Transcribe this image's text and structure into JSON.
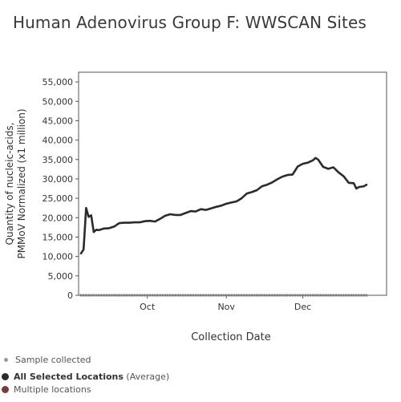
{
  "header": {
    "title": "Human Adenovirus Group F: WWSCAN Sites"
  },
  "chart_data": {
    "type": "line",
    "title": "Human Adenovirus Group F: WWSCAN Sites",
    "xlabel": "Collection Date",
    "ylabel_line1": "Quantity of nucleic-acids,",
    "ylabel_line2": "PMMoV Normalized (x1 million)",
    "ylim": [
      0,
      57500
    ],
    "yticks": [
      0,
      5000,
      10000,
      15000,
      20000,
      25000,
      30000,
      35000,
      40000,
      45000,
      50000,
      55000
    ],
    "ytick_labels": [
      "0",
      "5,000",
      "10,000",
      "15,000",
      "20,000",
      "25,000",
      "30,000",
      "35,000",
      "40,000",
      "45,000",
      "50,000",
      "55,000"
    ],
    "xlim": [
      "2023-09-05",
      "2023-12-26"
    ],
    "xticks": [
      {
        "date": "2023-10-01",
        "label": "Oct"
      },
      {
        "date": "2023-11-01",
        "label": "Nov"
      },
      {
        "date": "2023-12-01",
        "label": "Dec"
      }
    ],
    "grid": false,
    "series": [
      {
        "name": "All Selected Locations",
        "color": "#2b2b2b",
        "points": [
          [
            "2023-09-05",
            10800
          ],
          [
            "2023-09-06",
            11800
          ],
          [
            "2023-09-07",
            22500
          ],
          [
            "2023-09-08",
            20200
          ],
          [
            "2023-09-09",
            20600
          ],
          [
            "2023-09-10",
            16300
          ],
          [
            "2023-09-11",
            16900
          ],
          [
            "2023-09-12",
            16800
          ],
          [
            "2023-09-14",
            17200
          ],
          [
            "2023-09-16",
            17300
          ],
          [
            "2023-09-18",
            17700
          ],
          [
            "2023-09-20",
            18600
          ],
          [
            "2023-09-22",
            18700
          ],
          [
            "2023-09-24",
            18700
          ],
          [
            "2023-09-26",
            18800
          ],
          [
            "2023-09-28",
            18800
          ],
          [
            "2023-09-30",
            19100
          ],
          [
            "2023-10-02",
            19200
          ],
          [
            "2023-10-04",
            19000
          ],
          [
            "2023-10-06",
            19700
          ],
          [
            "2023-10-08",
            20500
          ],
          [
            "2023-10-10",
            20900
          ],
          [
            "2023-10-12",
            20700
          ],
          [
            "2023-10-14",
            20700
          ],
          [
            "2023-10-16",
            21200
          ],
          [
            "2023-10-18",
            21700
          ],
          [
            "2023-10-20",
            21600
          ],
          [
            "2023-10-22",
            22200
          ],
          [
            "2023-10-24",
            22000
          ],
          [
            "2023-10-26",
            22400
          ],
          [
            "2023-10-28",
            22800
          ],
          [
            "2023-10-30",
            23100
          ],
          [
            "2023-11-01",
            23600
          ],
          [
            "2023-11-03",
            23900
          ],
          [
            "2023-11-05",
            24200
          ],
          [
            "2023-11-07",
            25000
          ],
          [
            "2023-11-09",
            26200
          ],
          [
            "2023-11-11",
            26600
          ],
          [
            "2023-11-13",
            27100
          ],
          [
            "2023-11-15",
            28100
          ],
          [
            "2023-11-17",
            28500
          ],
          [
            "2023-11-19",
            29100
          ],
          [
            "2023-11-21",
            29900
          ],
          [
            "2023-11-23",
            30600
          ],
          [
            "2023-11-25",
            31000
          ],
          [
            "2023-11-27",
            31100
          ],
          [
            "2023-11-29",
            33200
          ],
          [
            "2023-12-01",
            33900
          ],
          [
            "2023-12-03",
            34200
          ],
          [
            "2023-12-05",
            34800
          ],
          [
            "2023-12-06",
            35400
          ],
          [
            "2023-12-07",
            35000
          ],
          [
            "2023-12-09",
            33100
          ],
          [
            "2023-12-11",
            32600
          ],
          [
            "2023-12-13",
            33000
          ],
          [
            "2023-12-15",
            31700
          ],
          [
            "2023-12-17",
            30700
          ],
          [
            "2023-12-19",
            29000
          ],
          [
            "2023-12-21",
            28900
          ],
          [
            "2023-12-22",
            27500
          ],
          [
            "2023-12-23",
            27900
          ],
          [
            "2023-12-25",
            28100
          ],
          [
            "2023-12-26",
            28500
          ]
        ]
      }
    ],
    "sample_markers": {
      "start": "2023-09-05",
      "end": "2023-12-26",
      "color": "#7f7f7f"
    }
  },
  "legend": {
    "sample_label": "Sample collected",
    "sample_color": "#9a9a9a",
    "all_locations_bold": "All Selected Locations",
    "all_locations_suffix": " (Average)",
    "all_locations_color": "#2b2b2b",
    "multiple_label": "Multiple locations",
    "multiple_color": "#7a3b3b"
  }
}
